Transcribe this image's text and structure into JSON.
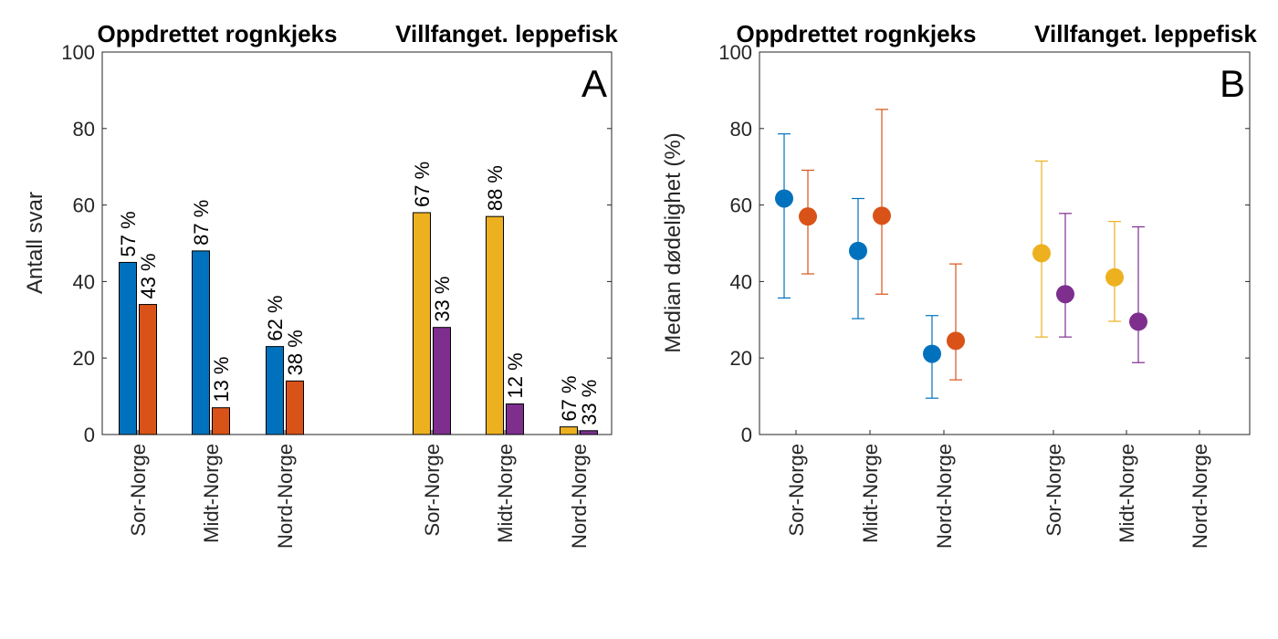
{
  "chart_data": [
    {
      "type": "bar",
      "panel_label": "A",
      "group_titles": [
        "Oppdrettet rognkjeks",
        "Villfanget. leppefisk"
      ],
      "categories": [
        "Sor-Norge",
        "Midt-Norge",
        "Nord-Norge",
        "Sor-Norge",
        "Midt-Norge",
        "Nord-Norge"
      ],
      "ylabel": "Antall svar",
      "xlabel": "",
      "ylim": [
        0,
        100
      ],
      "yticks": [
        "0",
        "20",
        "40",
        "60",
        "80",
        "100"
      ],
      "grid": false,
      "series": [
        {
          "name": "Oppdrettet rognkjeks - serie 1",
          "color": "#0072BD",
          "values": [
            45,
            48,
            23,
            null,
            null,
            null
          ],
          "labels": [
            "57 %",
            "87 %",
            "62 %",
            "",
            "",
            ""
          ]
        },
        {
          "name": "Oppdrettet rognkjeks - serie 2",
          "color": "#D95319",
          "values": [
            34,
            7,
            14,
            null,
            null,
            null
          ],
          "labels": [
            "43 %",
            "13 %",
            "38 %",
            "",
            "",
            ""
          ]
        },
        {
          "name": "Villfanget. leppefisk - serie 1",
          "color": "#EDB120",
          "values": [
            null,
            null,
            null,
            58,
            57,
            2
          ],
          "labels": [
            "",
            "",
            "",
            "67 %",
            "88 %",
            "67 %"
          ]
        },
        {
          "name": "Villfanget. leppefisk - serie 2",
          "color": "#7E2F8E",
          "values": [
            null,
            null,
            null,
            28,
            8,
            1
          ],
          "labels": [
            "",
            "",
            "",
            "33 %",
            "12 %",
            "33 %"
          ]
        }
      ]
    },
    {
      "type": "scatter",
      "panel_label": "B",
      "group_titles": [
        "Oppdrettet rognkjeks",
        "Villfanget. leppefisk"
      ],
      "categories": [
        "Sor-Norge",
        "Midt-Norge",
        "Nord-Norge",
        "Sor-Norge",
        "Midt-Norge",
        "Nord-Norge"
      ],
      "ylabel": "Median dødelighet (%)",
      "xlabel": "",
      "ylim": [
        0,
        100
      ],
      "yticks": [
        "0",
        "20",
        "40",
        "60",
        "80",
        "100"
      ],
      "grid": false,
      "series": [
        {
          "name": "Oppdrettet rognkjeks - serie 1",
          "color": "#0072BD",
          "points": [
            {
              "cat": 0,
              "y": 61.7,
              "low": 35.7,
              "high": 78.6
            },
            {
              "cat": 1,
              "y": 48,
              "low": 30.3,
              "high": 61.7
            },
            {
              "cat": 2,
              "y": 21.1,
              "low": 9.5,
              "high": 31.1
            }
          ]
        },
        {
          "name": "Oppdrettet rognkjeks - serie 2",
          "color": "#D95319",
          "points": [
            {
              "cat": 0,
              "y": 57,
              "low": 42,
              "high": 69.1
            },
            {
              "cat": 1,
              "y": 57.2,
              "low": 36.7,
              "high": 85
            },
            {
              "cat": 2,
              "y": 24.5,
              "low": 14.3,
              "high": 44.6
            }
          ]
        },
        {
          "name": "Villfanget. leppefisk - serie 1",
          "color": "#EDB120",
          "points": [
            {
              "cat": 3,
              "y": 47.4,
              "low": 25.5,
              "high": 71.5
            },
            {
              "cat": 4,
              "y": 41.1,
              "low": 29.6,
              "high": 55.7
            }
          ]
        },
        {
          "name": "Villfanget. leppefisk - serie 2",
          "color": "#7E2F8E",
          "points": [
            {
              "cat": 3,
              "y": 36.7,
              "low": 25.5,
              "high": 57.8
            },
            {
              "cat": 4,
              "y": 29.5,
              "low": 18.8,
              "high": 54.3
            }
          ]
        }
      ]
    }
  ]
}
